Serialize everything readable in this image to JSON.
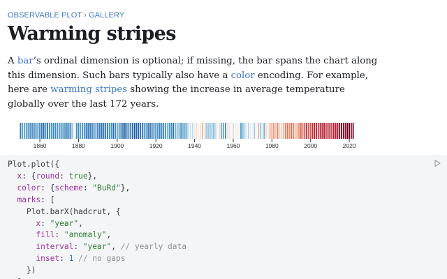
{
  "breadcrumb": {
    "parent": "OBSERVABLE PLOT",
    "separator": "›",
    "current": "GALLERY"
  },
  "page_title": "Warming stripes",
  "description": {
    "t1": "A ",
    "link_bar": "bar",
    "t2": "’s ordinal dimension is optional; if missing, the bar spans the chart along this dimension. Such bars typically also have a ",
    "link_color": "color",
    "t3": " encoding. For example, here are ",
    "link_stripes": "warming stripes",
    "t4": " showing the increase in average temperature globally over the last 172 years."
  },
  "colors": {
    "link": "#3b78c2",
    "code_bg": "#f4f5f6",
    "cold": "#2166ac",
    "neutral": "#f7f7f7",
    "warm": "#67001f"
  },
  "chart_data": {
    "type": "heatmap",
    "title": "",
    "xlabel": "",
    "ylabel": "",
    "x_ticks": [
      1860,
      1880,
      1900,
      1920,
      1940,
      1960,
      1980,
      2000,
      2020
    ],
    "xlim": [
      1850,
      2023
    ],
    "color_scheme": "BuRd",
    "series": [
      {
        "name": "",
        "x": [
          1850,
          1851,
          1852,
          1853,
          1854,
          1855,
          1856,
          1857,
          1858,
          1859,
          1860,
          1861,
          1862,
          1863,
          1864,
          1865,
          1866,
          1867,
          1868,
          1869,
          1870,
          1871,
          1872,
          1873,
          1874,
          1875,
          1876,
          1877,
          1878,
          1879,
          1880,
          1881,
          1882,
          1883,
          1884,
          1885,
          1886,
          1887,
          1888,
          1889,
          1890,
          1891,
          1892,
          1893,
          1894,
          1895,
          1896,
          1897,
          1898,
          1899,
          1900,
          1901,
          1902,
          1903,
          1904,
          1905,
          1906,
          1907,
          1908,
          1909,
          1910,
          1911,
          1912,
          1913,
          1914,
          1915,
          1916,
          1917,
          1918,
          1919,
          1920,
          1921,
          1922,
          1923,
          1924,
          1925,
          1926,
          1927,
          1928,
          1929,
          1930,
          1931,
          1932,
          1933,
          1934,
          1935,
          1936,
          1937,
          1938,
          1939,
          1940,
          1941,
          1942,
          1943,
          1944,
          1945,
          1946,
          1947,
          1948,
          1949,
          1950,
          1951,
          1952,
          1953,
          1954,
          1955,
          1956,
          1957,
          1958,
          1959,
          1960,
          1961,
          1962,
          1963,
          1964,
          1965,
          1966,
          1967,
          1968,
          1969,
          1970,
          1971,
          1972,
          1973,
          1974,
          1975,
          1976,
          1977,
          1978,
          1979,
          1980,
          1981,
          1982,
          1983,
          1984,
          1985,
          1986,
          1987,
          1988,
          1989,
          1990,
          1991,
          1992,
          1993,
          1994,
          1995,
          1996,
          1997,
          1998,
          1999,
          2000,
          2001,
          2002,
          2003,
          2004,
          2005,
          2006,
          2007,
          2008,
          2009,
          2010,
          2011,
          2012,
          2013,
          2014,
          2015,
          2016,
          2017,
          2018,
          2019,
          2020,
          2021,
          2022
        ],
        "anomaly": [
          -0.42,
          -0.23,
          -0.23,
          -0.27,
          -0.29,
          -0.3,
          -0.32,
          -0.47,
          -0.39,
          -0.28,
          -0.39,
          -0.43,
          -0.54,
          -0.3,
          -0.5,
          -0.29,
          -0.26,
          -0.32,
          -0.28,
          -0.28,
          -0.32,
          -0.35,
          -0.27,
          -0.31,
          -0.41,
          -0.42,
          -0.42,
          -0.11,
          0.0,
          -0.28,
          -0.32,
          -0.23,
          -0.29,
          -0.36,
          -0.49,
          -0.47,
          -0.42,
          -0.5,
          -0.38,
          -0.25,
          -0.51,
          -0.4,
          -0.5,
          -0.51,
          -0.49,
          -0.45,
          -0.28,
          -0.26,
          -0.5,
          -0.35,
          -0.23,
          -0.29,
          -0.44,
          -0.53,
          -0.6,
          -0.41,
          -0.34,
          -0.49,
          -0.55,
          -0.58,
          -0.53,
          -0.56,
          -0.49,
          -0.49,
          -0.3,
          -0.23,
          -0.43,
          -0.56,
          -0.45,
          -0.36,
          -0.35,
          -0.27,
          -0.38,
          -0.35,
          -0.38,
          -0.31,
          -0.16,
          -0.28,
          -0.3,
          -0.44,
          -0.21,
          -0.17,
          -0.19,
          -0.34,
          -0.19,
          -0.23,
          -0.19,
          -0.06,
          -0.04,
          -0.06,
          0.03,
          0.06,
          0.02,
          0.04,
          0.15,
          0.03,
          -0.1,
          -0.12,
          -0.13,
          -0.13,
          -0.2,
          -0.06,
          0.0,
          0.07,
          -0.18,
          -0.19,
          -0.28,
          0.04,
          0.05,
          0.0,
          -0.05,
          0.03,
          0.02,
          0.02,
          -0.25,
          -0.16,
          -0.08,
          -0.03,
          -0.08,
          0.03,
          -0.01,
          -0.09,
          0.0,
          0.14,
          -0.12,
          -0.03,
          -0.17,
          0.07,
          0.03,
          0.16,
          0.19,
          0.27,
          0.11,
          0.29,
          0.09,
          0.08,
          0.15,
          0.3,
          0.33,
          0.24,
          0.38,
          0.36,
          0.15,
          0.18,
          0.28,
          0.4,
          0.31,
          0.48,
          0.62,
          0.42,
          0.41,
          0.54,
          0.59,
          0.6,
          0.51,
          0.63,
          0.58,
          0.63,
          0.53,
          0.63,
          0.7,
          0.58,
          0.6,
          0.62,
          0.67,
          0.82,
          0.9,
          0.82,
          0.77,
          0.89,
          0.92,
          0.79,
          0.81
        ]
      }
    ]
  },
  "code": {
    "l1": [
      "Plot.plot({"
    ],
    "l2": [
      "x",
      ": {",
      "round",
      ": ",
      "true",
      "},"
    ],
    "l3": [
      "color",
      ": {",
      "scheme",
      ": ",
      "\"BuRd\"",
      "},"
    ],
    "l4": [
      "marks",
      ": ["
    ],
    "l5": [
      "Plot.barX(hadcrut, {"
    ],
    "l6": [
      "x",
      ": ",
      "\"year\"",
      ","
    ],
    "l7": [
      "fill",
      ": ",
      "\"anomaly\"",
      ","
    ],
    "l8": [
      "interval",
      ": ",
      "\"year\"",
      ", ",
      "// yearly data"
    ],
    "l9": [
      "inset",
      ": ",
      "1",
      " ",
      "// no gaps"
    ],
    "l10": [
      "})"
    ],
    "l11": [
      "]"
    ]
  },
  "run_icon": "play-icon"
}
